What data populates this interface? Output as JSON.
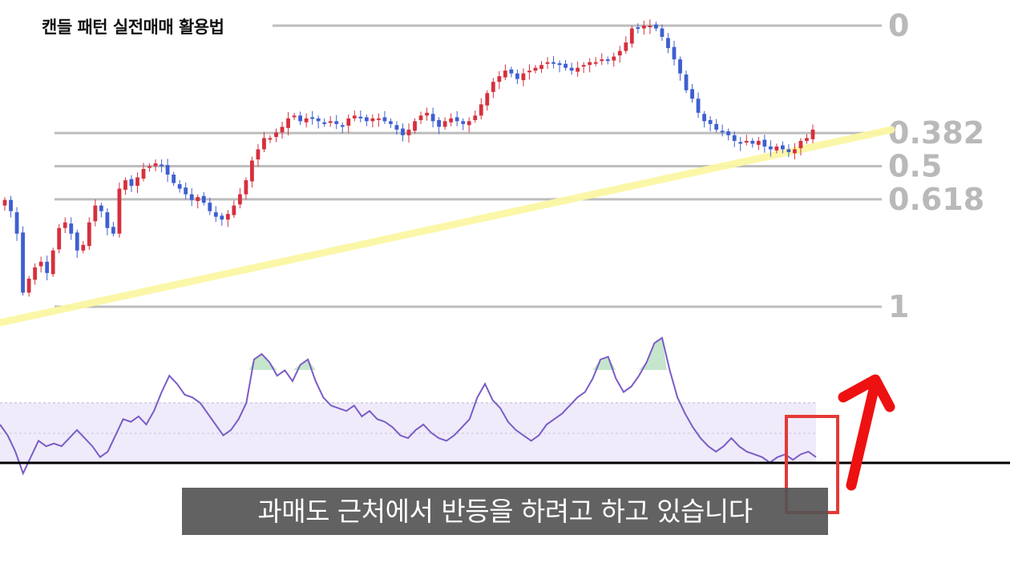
{
  "title": "캔들 패턴 실전매매 활용법",
  "subtitle": "과매도 근처에서 반등을 하려고 하고 있습니다",
  "colors": {
    "up_candle": "#d6303d",
    "down_candle": "#3e5fd0",
    "fib_line": "#bdbdbd",
    "fib_label": "#b9b9b9",
    "trendline": "#fbf7a4",
    "rsi_line": "#7b5cc6",
    "rsi_band": "#efebfa",
    "rsi_overbought_fill": "#bfe3c6",
    "highlight_box": "#e53935",
    "arrow": "#ee1111",
    "baseline": "#000000"
  },
  "chart_data": [
    {
      "type": "candlestick",
      "description": "price candles with Fibonacci retracement levels and rising trendline",
      "fib_levels": [
        {
          "label": "0",
          "value": 0
        },
        {
          "label": "0.382",
          "value": 0.382
        },
        {
          "label": "0.5",
          "value": 0.5
        },
        {
          "label": "0.618",
          "value": 0.618
        },
        {
          "label": "1",
          "value": 1
        }
      ],
      "ylim_fib": [
        -0.05,
        1.05
      ],
      "close_path_fib": [
        0.62,
        0.66,
        0.74,
        0.95,
        0.9,
        0.86,
        0.84,
        0.88,
        0.8,
        0.72,
        0.7,
        0.74,
        0.8,
        0.78,
        0.7,
        0.64,
        0.66,
        0.72,
        0.74,
        0.58,
        0.55,
        0.57,
        0.54,
        0.51,
        0.5,
        0.49,
        0.5,
        0.53,
        0.56,
        0.58,
        0.6,
        0.62,
        0.61,
        0.63,
        0.66,
        0.68,
        0.69,
        0.67,
        0.64,
        0.6,
        0.55,
        0.48,
        0.44,
        0.4,
        0.4,
        0.38,
        0.36,
        0.33,
        0.32,
        0.34,
        0.33,
        0.33,
        0.34,
        0.35,
        0.34,
        0.35,
        0.36,
        0.33,
        0.32,
        0.33,
        0.34,
        0.33,
        0.33,
        0.34,
        0.35,
        0.37,
        0.39,
        0.37,
        0.34,
        0.32,
        0.31,
        0.34,
        0.36,
        0.34,
        0.33,
        0.34,
        0.35,
        0.34,
        0.32,
        0.28,
        0.24,
        0.2,
        0.18,
        0.16,
        0.17,
        0.19,
        0.17,
        0.16,
        0.15,
        0.14,
        0.13,
        0.13,
        0.14,
        0.15,
        0.16,
        0.15,
        0.14,
        0.13,
        0.13,
        0.12,
        0.12,
        0.11,
        0.09,
        0.06,
        0.01,
        0.01,
        0.0,
        0.0,
        0.01,
        0.04,
        0.08,
        0.12,
        0.17,
        0.23,
        0.26,
        0.31,
        0.34,
        0.35,
        0.37,
        0.38,
        0.39,
        0.41,
        0.42,
        0.41,
        0.42,
        0.41,
        0.43,
        0.44,
        0.43,
        0.44,
        0.45,
        0.44,
        0.41,
        0.4,
        0.37
      ]
    },
    {
      "type": "line",
      "description": "RSI oscillator below price chart",
      "values": [
        48,
        44,
        38,
        30,
        36,
        42,
        40,
        41,
        40,
        43,
        46,
        43,
        40,
        36,
        38,
        44,
        50,
        49,
        51,
        48,
        53,
        60,
        66,
        63,
        59,
        58,
        56,
        52,
        48,
        44,
        46,
        50,
        56,
        72,
        74,
        71,
        66,
        68,
        64,
        70,
        72,
        64,
        58,
        55,
        54,
        53,
        55,
        51,
        53,
        50,
        49,
        47,
        44,
        43,
        46,
        48,
        45,
        43,
        42,
        44,
        47,
        50,
        58,
        63,
        57,
        54,
        49,
        46,
        44,
        42,
        44,
        48,
        50,
        52,
        55,
        58,
        60,
        65,
        72,
        73,
        65,
        60,
        62,
        66,
        71,
        78,
        80,
        68,
        58,
        52,
        47,
        43,
        40,
        38,
        40,
        43,
        40,
        38,
        37,
        36,
        34,
        36,
        37,
        35,
        37,
        38,
        36
      ]
    }
  ]
}
